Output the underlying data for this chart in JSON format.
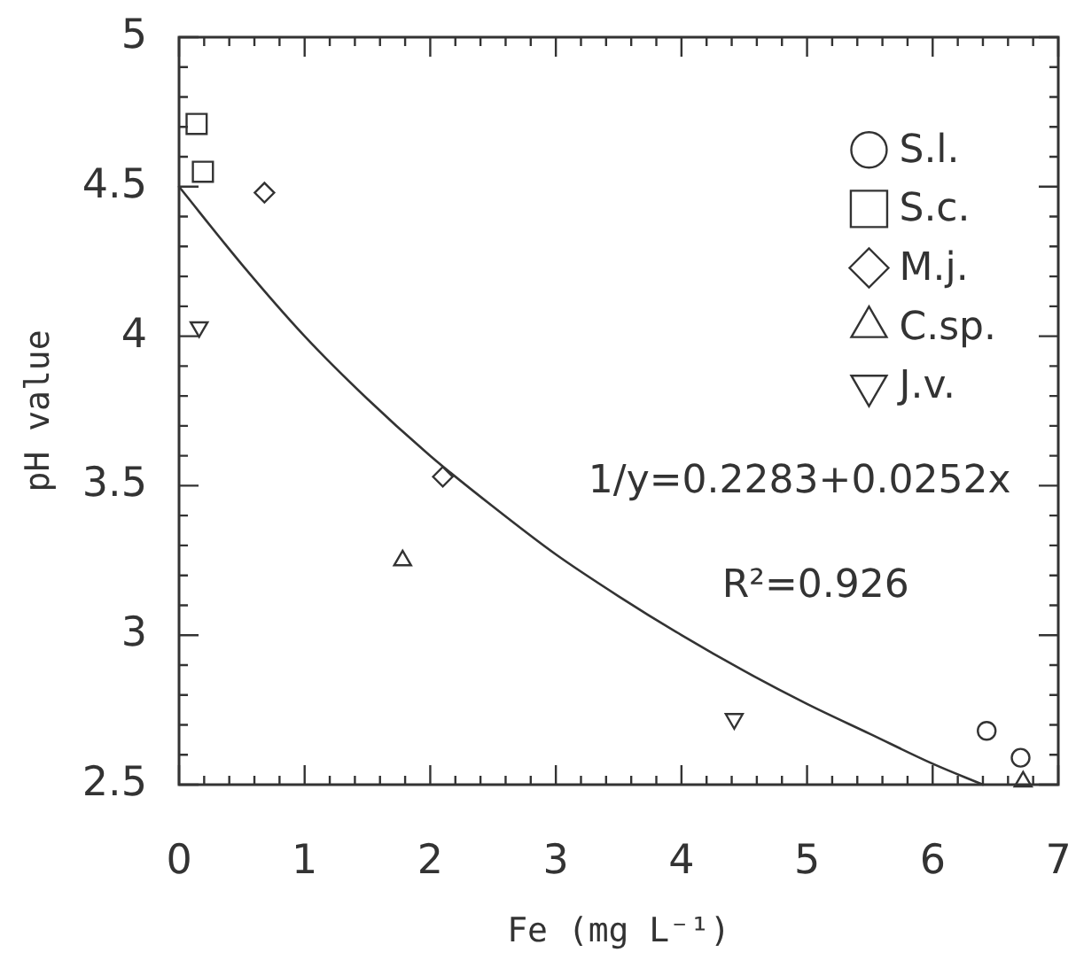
{
  "chart_data": {
    "type": "scatter",
    "xlabel": "Fe (mg L⁻¹)",
    "ylabel": "pH value",
    "xlim": [
      0,
      7
    ],
    "ylim": [
      2.5,
      5
    ],
    "xticks": [
      0,
      {
        "value": 0.2,
        "label": null
      },
      {
        "value": 0.4,
        "label": null
      },
      {
        "value": 0.6,
        "label": null
      },
      {
        "value": 0.8,
        "label": null
      },
      1,
      {
        "value": 1.2,
        "label": null
      },
      {
        "value": 1.4,
        "label": null
      },
      {
        "value": 1.6,
        "label": null
      },
      {
        "value": 1.8,
        "label": null
      },
      2,
      {
        "value": 2.2,
        "label": null
      },
      {
        "value": 2.4,
        "label": null
      },
      {
        "value": 2.6,
        "label": null
      },
      {
        "value": 2.8,
        "label": null
      },
      3,
      {
        "value": 3.2,
        "label": null
      },
      {
        "value": 3.4,
        "label": null
      },
      {
        "value": 3.6,
        "label": null
      },
      {
        "value": 3.8,
        "label": null
      },
      4,
      {
        "value": 4.2,
        "label": null
      },
      {
        "value": 4.4,
        "label": null
      },
      {
        "value": 4.6,
        "label": null
      },
      {
        "value": 4.8,
        "label": null
      },
      5,
      {
        "value": 5.2,
        "label": null
      },
      {
        "value": 5.4,
        "label": null
      },
      {
        "value": 5.6,
        "label": null
      },
      {
        "value": 5.8,
        "label": null
      },
      6,
      {
        "value": 6.2,
        "label": null
      },
      {
        "value": 6.4,
        "label": null
      },
      {
        "value": 6.6,
        "label": null
      },
      {
        "value": 6.8,
        "label": null
      },
      7
    ],
    "yticks": [
      2.5,
      {
        "value": 2.6,
        "label": null
      },
      {
        "value": 2.7,
        "label": null
      },
      {
        "value": 2.8,
        "label": null
      },
      {
        "value": 2.9,
        "label": null
      },
      3,
      {
        "value": 3.1,
        "label": null
      },
      {
        "value": 3.2,
        "label": null
      },
      {
        "value": 3.3,
        "label": null
      },
      {
        "value": 3.4,
        "label": null
      },
      3.5,
      {
        "value": 3.6,
        "label": null
      },
      {
        "value": 3.7,
        "label": null
      },
      {
        "value": 3.8,
        "label": null
      },
      {
        "value": 3.9,
        "label": null
      },
      4,
      {
        "value": 4.1,
        "label": null
      },
      {
        "value": 4.2,
        "label": null
      },
      {
        "value": 4.3,
        "label": null
      },
      {
        "value": 4.4,
        "label": null
      },
      4.5,
      {
        "value": 4.6,
        "label": null
      },
      {
        "value": 4.7,
        "label": null
      },
      {
        "value": 4.8,
        "label": null
      },
      {
        "value": 4.9,
        "label": null
      },
      5
    ],
    "legend": "top right",
    "annotations": [
      "1/y=0.2283+0.0252x",
      "R²=0.926"
    ],
    "series": [
      {
        "name": "S.l.",
        "color": "#333333",
        "marker": "circle",
        "x": [
          6.43,
          6.7
        ],
        "values": [
          2.68,
          2.59
        ]
      },
      {
        "name": "S.c.",
        "color": "#333333",
        "marker": "square",
        "x": [
          0.14,
          0.19
        ],
        "values": [
          4.71,
          4.55
        ]
      },
      {
        "name": "M.j.",
        "color": "#333333",
        "marker": "diamond",
        "x": [
          0.68,
          2.1
        ],
        "values": [
          4.48,
          3.53
        ]
      },
      {
        "name": "C.sp.",
        "color": "#333333",
        "marker": "triangle",
        "x": [
          1.78,
          6.72
        ],
        "values": [
          3.25,
          2.51
        ]
      },
      {
        "name": "J.v.",
        "color": "#333333",
        "marker": "triangle-down",
        "x": [
          0.16,
          4.42
        ],
        "values": [
          4.03,
          2.72
        ]
      },
      {
        "type": "line",
        "color": "#333333",
        "marker": "none",
        "x": [
          0,
          0.5,
          1,
          1.5,
          2,
          2.5,
          3,
          3.5,
          4,
          4.5,
          5,
          5.5,
          6,
          6.4
        ],
        "values": [
          4.5,
          4.24,
          4.0,
          3.79,
          3.6,
          3.43,
          3.27,
          3.13,
          3.0,
          2.88,
          2.77,
          2.67,
          2.57,
          2.5
        ]
      }
    ]
  }
}
